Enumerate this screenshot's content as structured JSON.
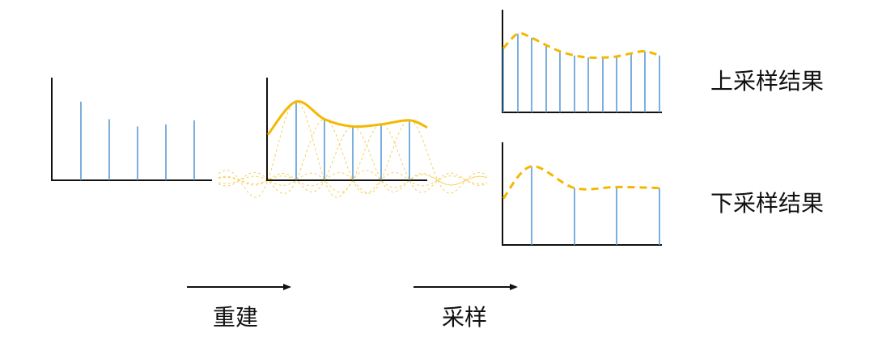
{
  "labels": {
    "upsample_result": "上采样结果",
    "downsample_result": "下采样结果",
    "reconstruct": "重建",
    "sample": "采样"
  },
  "colors": {
    "axis": "#111111",
    "sample_line": "#5b9bd5",
    "curve": "#f5b800",
    "kernel": "#f5c842",
    "arrow": "#111111"
  },
  "original_samples": [
    0.76,
    0.59,
    0.52,
    0.54,
    0.58
  ],
  "reconstructed_samples": [
    0.76,
    0.59,
    0.52,
    0.54,
    0.58
  ],
  "upsampled_samples": [
    0.62,
    0.76,
    0.72,
    0.65,
    0.59,
    0.55,
    0.53,
    0.53,
    0.54,
    0.57,
    0.59,
    0.55
  ],
  "downsampled_samples": [
    0.76,
    0.55,
    0.56,
    0.55
  ]
}
